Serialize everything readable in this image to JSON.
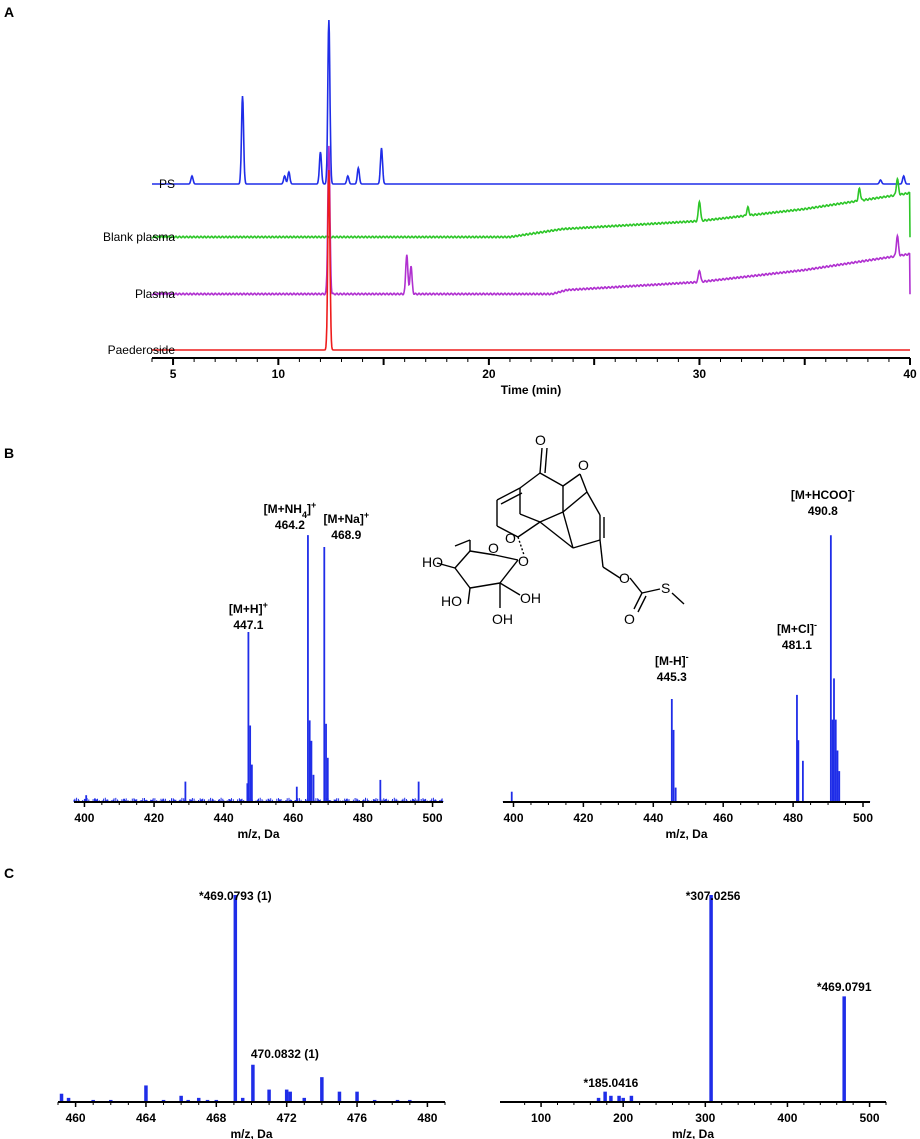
{
  "panels": {
    "a": "A",
    "b": "B",
    "c": "C"
  },
  "structure_atoms": [
    "O",
    "O",
    "O",
    "O",
    "O",
    "O",
    "HO",
    "HO",
    "OH",
    "OH",
    "O",
    "S"
  ],
  "chart_data": [
    {
      "id": "A",
      "type": "line",
      "xlabel": "Time (min)",
      "xlim": [
        4,
        40
      ],
      "x_ticks": [
        5,
        10,
        20,
        30,
        40
      ],
      "series": [
        {
          "name": "PS",
          "color": "#1f2de8",
          "peaks": [
            [
              5.9,
              0.02
            ],
            [
              8.3,
              0.22
            ],
            [
              10.3,
              0.02
            ],
            [
              10.5,
              0.03
            ],
            [
              12.0,
              0.08
            ],
            [
              12.4,
              0.41
            ],
            [
              13.3,
              0.02
            ],
            [
              13.8,
              0.04
            ],
            [
              14.9,
              0.09
            ],
            [
              38.6,
              0.01
            ],
            [
              39.7,
              0.02
            ]
          ],
          "baseline": [
            [
              4,
              0
            ],
            [
              40,
              0
            ]
          ]
        },
        {
          "name": "Blank plasma",
          "color": "#2dc628",
          "peaks": [
            [
              30.0,
              0.05
            ],
            [
              32.3,
              0.02
            ],
            [
              37.6,
              0.03
            ],
            [
              39.4,
              0.04
            ]
          ],
          "baseline": [
            [
              4,
              0
            ],
            [
              21,
              0
            ],
            [
              23.5,
              0.02
            ],
            [
              30,
              0.04
            ],
            [
              35,
              0.07
            ],
            [
              40,
              0.11
            ]
          ]
        },
        {
          "name": "Plasma",
          "color": "#b030d0",
          "peaks": [
            [
              12.4,
              0.37
            ],
            [
              16.1,
              0.1
            ],
            [
              16.3,
              0.07
            ],
            [
              30.0,
              0.03
            ],
            [
              39.4,
              0.05
            ]
          ],
          "baseline": [
            [
              4,
              0
            ],
            [
              23,
              0
            ],
            [
              23.7,
              0.01
            ],
            [
              30,
              0.03
            ],
            [
              35,
              0.06
            ],
            [
              40,
              0.1
            ]
          ]
        },
        {
          "name": "Paederoside",
          "color": "#ee1c1c",
          "peaks": [
            [
              12.4,
              0.45
            ]
          ],
          "baseline": [
            [
              4,
              0
            ],
            [
              40,
              0
            ]
          ]
        }
      ]
    },
    {
      "id": "B-positive",
      "type": "bar",
      "xlabel": "m/z, Da",
      "xlim": [
        397,
        503
      ],
      "x_ticks": [
        400,
        420,
        440,
        460,
        480,
        500
      ],
      "color": "#1f2de8",
      "peaks": [
        [
          400.5,
          4
        ],
        [
          403,
          2
        ],
        [
          429,
          12
        ],
        [
          446.8,
          11
        ],
        [
          447.1,
          100
        ],
        [
          447.6,
          45
        ],
        [
          448.1,
          22
        ],
        [
          461,
          9
        ],
        [
          464.2,
          157
        ],
        [
          464.7,
          48
        ],
        [
          465.2,
          36
        ],
        [
          465.8,
          16
        ],
        [
          468.9,
          150
        ],
        [
          469.4,
          46
        ],
        [
          469.9,
          26
        ],
        [
          485,
          13
        ],
        [
          496,
          12
        ]
      ],
      "annotations": [
        {
          "text": "[M+H]",
          "sup": "+",
          "value": "447.1"
        },
        {
          "text": "[M+NH",
          "sub": "4",
          "after": "]",
          "sup": "+",
          "value": "464.2"
        },
        {
          "text": "[M+Na]",
          "sup": "+",
          "value": "468.9"
        }
      ]
    },
    {
      "id": "B-negative",
      "type": "bar",
      "xlabel": "m/z, Da",
      "xlim": [
        397,
        502
      ],
      "x_ticks": [
        400,
        420,
        440,
        460,
        480,
        500
      ],
      "color": "#1f2de8",
      "peaks": [
        [
          399.5,
          10
        ],
        [
          445.3,
          100
        ],
        [
          445.8,
          70
        ],
        [
          446.4,
          14
        ],
        [
          481.1,
          104
        ],
        [
          481.5,
          60
        ],
        [
          482.8,
          40
        ],
        [
          490.8,
          259
        ],
        [
          491.3,
          80
        ],
        [
          491.7,
          120
        ],
        [
          492.2,
          80
        ],
        [
          492.7,
          50
        ],
        [
          493.2,
          30
        ]
      ],
      "annotations": [
        {
          "text": "[M-H]",
          "sup": "-",
          "value": "445.3"
        },
        {
          "text": "[M+Cl]",
          "sup": "-",
          "value": "481.1"
        },
        {
          "text": "[M+HCOO]",
          "sup": "-",
          "value": "490.8"
        }
      ]
    },
    {
      "id": "C-left",
      "type": "bar",
      "xlabel": "m/z, Da",
      "xlim": [
        459,
        481
      ],
      "x_ticks": [
        460,
        464,
        468,
        472,
        476,
        480
      ],
      "color": "#1f2de8",
      "peaks": [
        [
          459.2,
          4
        ],
        [
          459.6,
          2
        ],
        [
          461,
          1
        ],
        [
          462,
          1
        ],
        [
          464,
          8
        ],
        [
          465,
          1
        ],
        [
          466,
          3
        ],
        [
          466.4,
          1
        ],
        [
          467,
          2
        ],
        [
          467.5,
          1
        ],
        [
          468,
          1
        ],
        [
          469.08,
          100
        ],
        [
          469.5,
          2
        ],
        [
          470.08,
          18
        ],
        [
          471,
          6
        ],
        [
          472,
          6
        ],
        [
          472.2,
          5
        ],
        [
          473,
          2
        ],
        [
          474,
          12
        ],
        [
          475,
          5
        ],
        [
          476,
          5
        ],
        [
          477,
          1
        ],
        [
          478.3,
          1
        ],
        [
          479,
          1
        ]
      ],
      "annotations": [
        "*469.0793 (1)",
        "470.0832 (1)"
      ]
    },
    {
      "id": "C-right",
      "type": "bar",
      "xlabel": "m/z, Da",
      "xlim": [
        50,
        520
      ],
      "x_ticks": [
        100,
        200,
        300,
        400,
        500
      ],
      "color": "#1f2de8",
      "peaks": [
        [
          170,
          2
        ],
        [
          178,
          5
        ],
        [
          185.04,
          3
        ],
        [
          195,
          3
        ],
        [
          200,
          2
        ],
        [
          210,
          3
        ],
        [
          307.03,
          100
        ],
        [
          469.08,
          51
        ]
      ],
      "annotations": [
        "*307.0256",
        "*469.0791",
        "*185.0416"
      ]
    }
  ]
}
